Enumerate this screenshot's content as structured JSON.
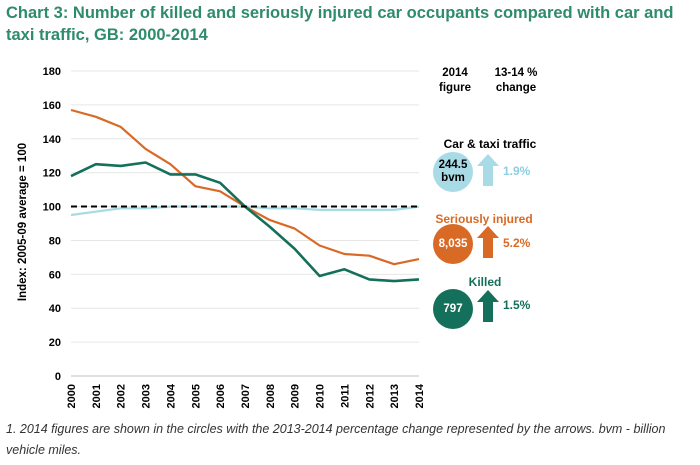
{
  "title": "Chart 3: Number of killed and seriously injured car occupants compared with car and taxi traffic, GB: 2000-2014",
  "footnote": "1. 2014 figures are shown in the circles with the 2013-2014 percentage change represented by the arrows. bvm - billion vehicle miles.",
  "headers": {
    "figure": "2014 figure",
    "change": "13-14 % change"
  },
  "panel": {
    "traffic": {
      "label": "Car & taxi traffic",
      "figure": "244.5 bvm",
      "change": "1.9%",
      "color": "#a8dbe6",
      "text_color": "#8ccfe0"
    },
    "injured": {
      "label": "Seriously injured",
      "figure": "8,035",
      "change": "5.2%",
      "color": "#d86a26",
      "text_color": "#d86a26"
    },
    "killed": {
      "label": "Killed",
      "figure": "797",
      "change": "1.5%",
      "color": "#14705a",
      "text_color": "#14705a"
    }
  },
  "chart_data": {
    "type": "line",
    "ylabel": "Index: 2005-09 average = 100",
    "xlabel": "",
    "ylim": [
      0,
      180
    ],
    "yticks": [
      0,
      20,
      40,
      60,
      80,
      100,
      120,
      140,
      160,
      180
    ],
    "x": [
      "2000",
      "2001",
      "2002",
      "2003",
      "2004",
      "2005",
      "2006",
      "2007",
      "2008",
      "2009",
      "2010",
      "2011",
      "2012",
      "2013",
      "2014"
    ],
    "reference_line": 100,
    "series": [
      {
        "name": "Car & taxi traffic",
        "color": "#a8dbe6",
        "values": [
          95,
          97,
          99,
          99,
          100,
          100,
          100,
          100,
          99,
          99,
          98,
          98,
          98,
          98,
          100
        ]
      },
      {
        "name": "Seriously injured",
        "color": "#d86a26",
        "values": [
          157,
          153,
          147,
          134,
          125,
          112,
          109,
          100,
          92,
          87,
          77,
          72,
          71,
          66,
          69
        ]
      },
      {
        "name": "Killed",
        "color": "#14705a",
        "values": [
          118,
          125,
          124,
          126,
          119,
          119,
          114,
          100,
          88,
          75,
          59,
          63,
          57,
          56,
          57
        ]
      }
    ]
  }
}
